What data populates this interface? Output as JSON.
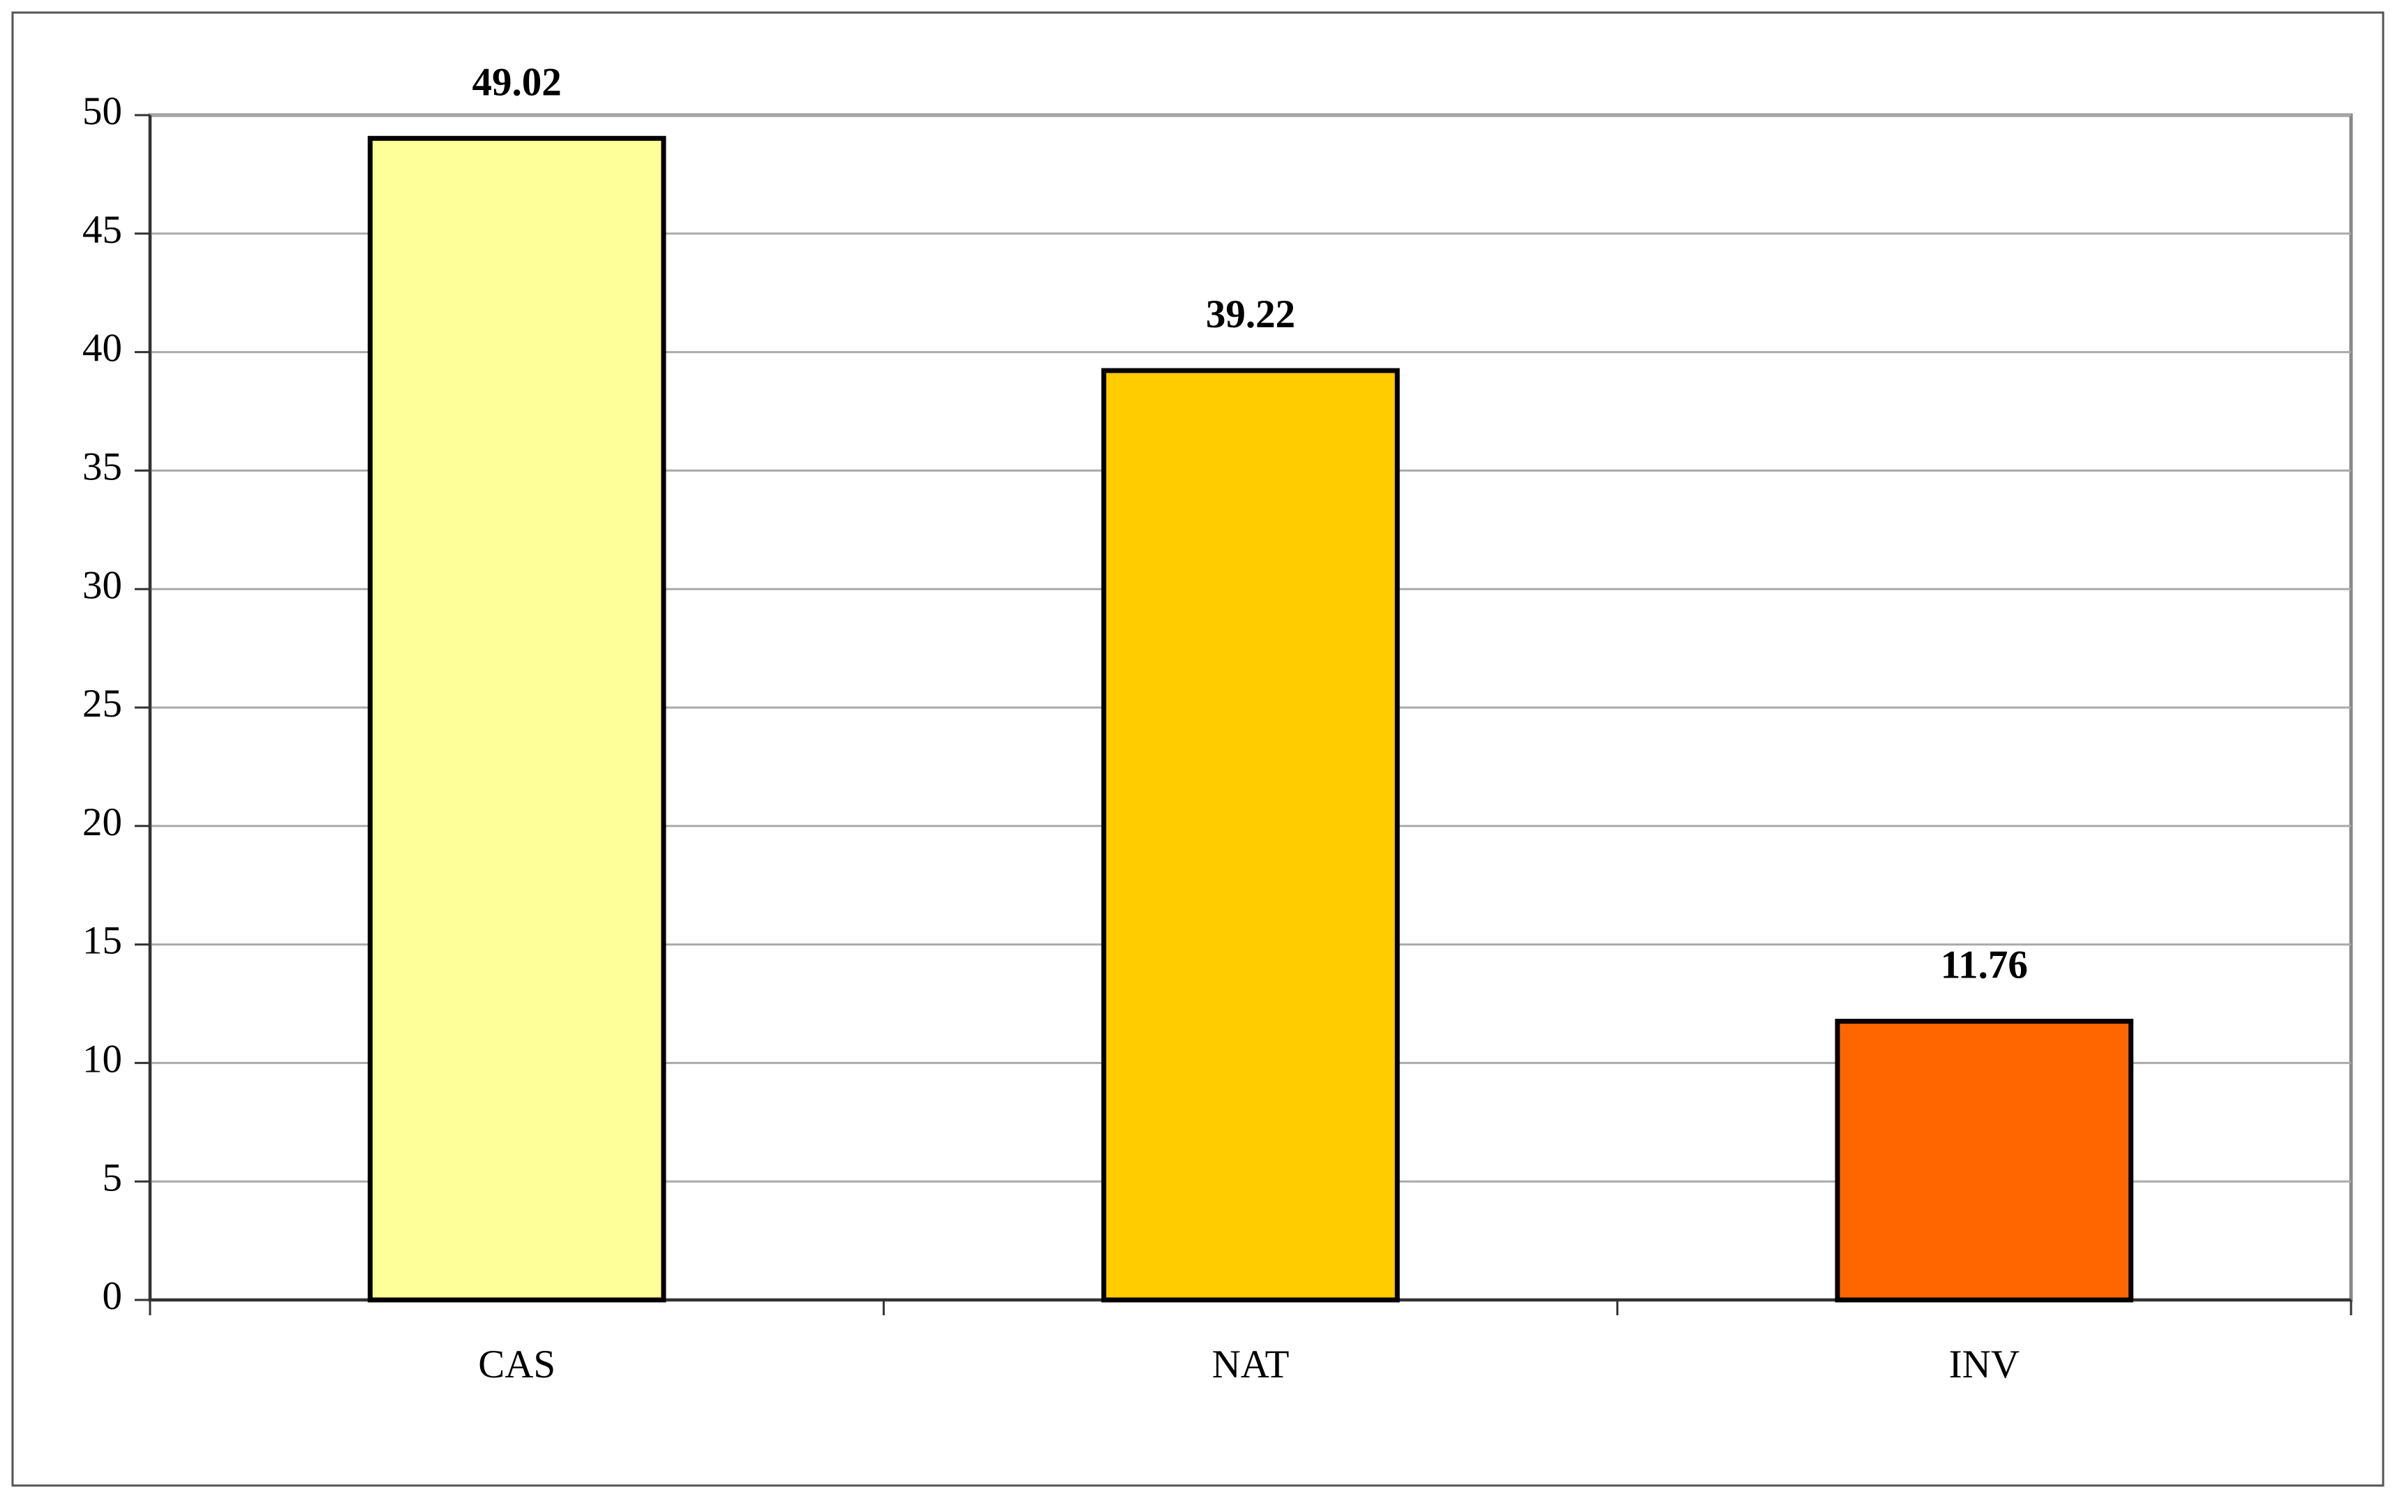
{
  "chart_data": {
    "type": "bar",
    "categories": [
      "CAS",
      "NAT",
      "INV"
    ],
    "values": [
      49.02,
      39.22,
      11.76
    ],
    "colors": [
      "#ffff99",
      "#ffcc00",
      "#ff6600"
    ],
    "ylim": [
      0,
      50
    ],
    "yticks": [
      0,
      5,
      10,
      15,
      20,
      25,
      30,
      35,
      40,
      45,
      50
    ],
    "grid": true
  }
}
